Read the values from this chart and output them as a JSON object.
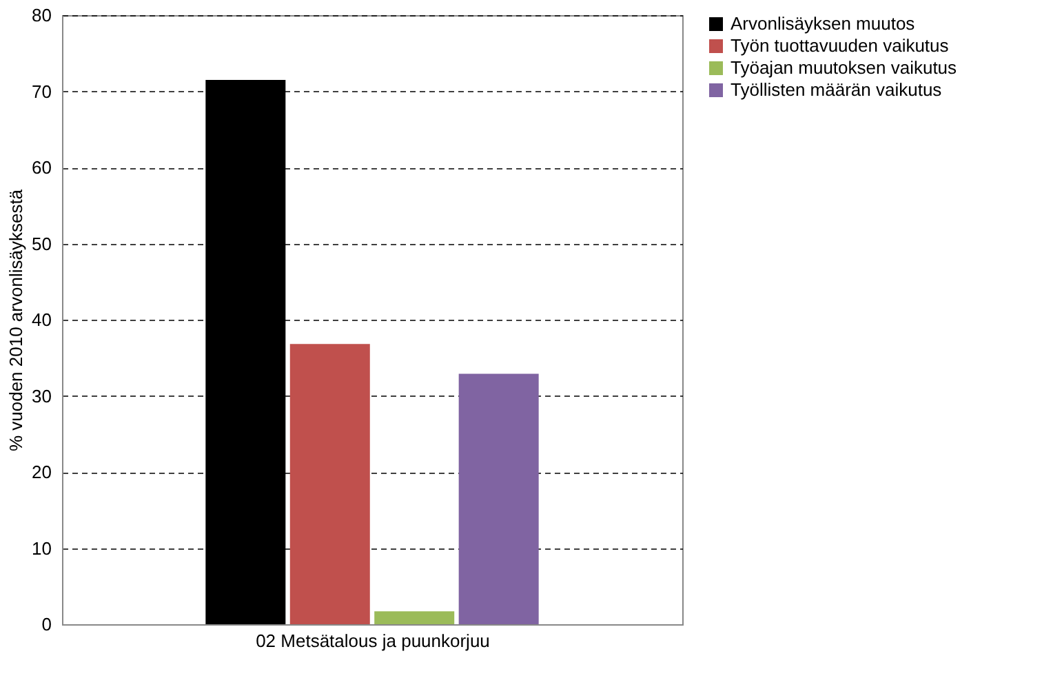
{
  "chart_data": {
    "type": "bar",
    "categories": [
      "02 Metsätalous ja puunkorjuu"
    ],
    "ylabel": "% vuoden 2010 arvonlisäyksestä",
    "series": [
      {
        "name": "Arvonlisäyksen muutos",
        "color": "#000000",
        "values": [
          71.5
        ]
      },
      {
        "name": "Työn tuottavuuden vaikutus",
        "color": "#c0504d",
        "values": [
          36.8
        ]
      },
      {
        "name": "Työajan muutoksen vaikutus",
        "color": "#9bbb59",
        "values": [
          1.7
        ]
      },
      {
        "name": "Työllisten määrän vaikutus",
        "color": "#8064a2",
        "values": [
          32.9
        ]
      }
    ],
    "ylim": [
      0,
      80
    ],
    "yticks": [
      0,
      10,
      20,
      30,
      40,
      50,
      60,
      70,
      80
    ],
    "grid": "y",
    "legend": "right"
  }
}
